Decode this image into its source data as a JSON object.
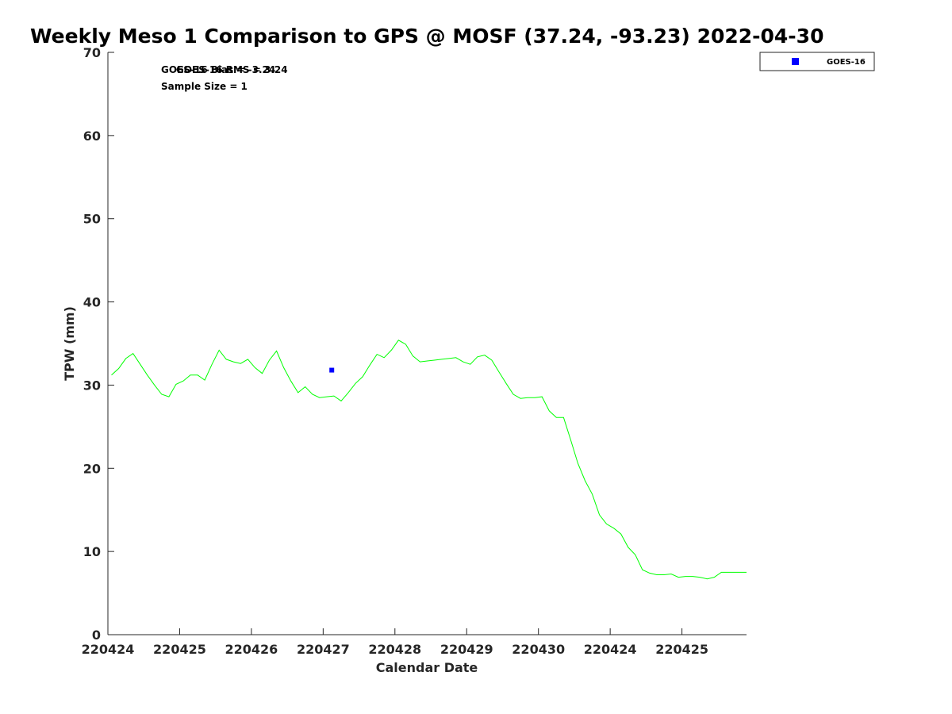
{
  "chart_data": {
    "type": "line",
    "title": "Weekly Meso 1 Comparison to GPS @ MOSF (37.24, -93.23) 2022-04-30",
    "xlabel": "Calendar Date",
    "ylabel": "TPW (mm)",
    "ylim": [
      0,
      70
    ],
    "yticks": [
      0,
      10,
      20,
      30,
      40,
      50,
      60,
      70
    ],
    "xlim": [
      0,
      8.9
    ],
    "xticks": [
      0,
      1,
      2,
      3,
      4,
      5,
      6,
      7,
      8
    ],
    "xtick_labels": [
      "220424",
      "220425",
      "220426",
      "220427",
      "220428",
      "220429",
      "220430",
      "220424",
      "220425"
    ],
    "grid": false,
    "legend_placement": "top-right",
    "stats": {
      "bias": "GOES-16 Bias = -3.24",
      "rms": "GOES-16 RMS = 3.24",
      "sample_size": "Sample Size = 1"
    },
    "series": [
      {
        "name": "GOES-16",
        "kind": "scatter",
        "color": "#0000ff",
        "x": [
          3.12
        ],
        "y": [
          31.8
        ]
      },
      {
        "kind": "line",
        "color": "#00ff00",
        "x": [
          0.05,
          0.15,
          0.25,
          0.35,
          0.45,
          0.55,
          0.65,
          0.75,
          0.85,
          0.95,
          1.05,
          1.15,
          1.25,
          1.35,
          1.45,
          1.55,
          1.65,
          1.75,
          1.85,
          1.95,
          2.05,
          2.15,
          2.25,
          2.35,
          2.45,
          2.55,
          2.65,
          2.75,
          2.85,
          2.95,
          3.05,
          3.15,
          3.25,
          3.35,
          3.45,
          3.55,
          3.65,
          3.75,
          3.85,
          3.95,
          4.05,
          4.15,
          4.25,
          4.35,
          4.45,
          4.55,
          4.65,
          4.75,
          4.85,
          4.95,
          5.05,
          5.15,
          5.25,
          5.35,
          5.45,
          5.55,
          5.65,
          5.75,
          5.85,
          5.95,
          6.05,
          6.15,
          6.25,
          6.35,
          6.45,
          6.55,
          6.65,
          6.75,
          6.85,
          6.95,
          7.05,
          7.15,
          7.25,
          7.35,
          7.45,
          7.55,
          7.65,
          7.75,
          7.85,
          7.95,
          8.05,
          8.15,
          8.25,
          8.35,
          8.45,
          8.55,
          8.65,
          8.75,
          8.85,
          8.9
        ],
        "y": [
          31.2,
          32.0,
          33.2,
          33.8,
          32.5,
          31.2,
          30.0,
          28.9,
          28.6,
          30.1,
          30.5,
          31.2,
          31.2,
          30.6,
          32.5,
          34.2,
          33.1,
          32.8,
          32.6,
          33.1,
          32.1,
          31.4,
          33.0,
          34.1,
          32.1,
          30.5,
          29.1,
          29.8,
          28.9,
          28.5,
          28.6,
          28.7,
          28.1,
          29.1,
          30.2,
          31.0,
          32.4,
          33.7,
          33.3,
          34.2,
          35.4,
          34.9,
          33.5,
          32.8,
          32.9,
          33.0,
          33.1,
          33.2,
          33.3,
          32.8,
          32.5,
          33.4,
          33.6,
          33.0,
          31.6,
          30.2,
          28.9,
          28.4,
          28.5,
          28.5,
          28.6,
          26.9,
          26.1,
          26.1,
          23.4,
          20.6,
          18.5,
          16.9,
          14.4,
          13.3,
          12.8,
          12.1,
          10.5,
          9.6,
          7.8,
          7.4,
          7.2,
          7.2,
          7.3,
          6.9,
          7.0,
          7.0,
          6.9,
          6.7,
          6.9,
          7.5,
          7.5,
          7.5,
          7.5,
          7.5
        ]
      }
    ]
  }
}
